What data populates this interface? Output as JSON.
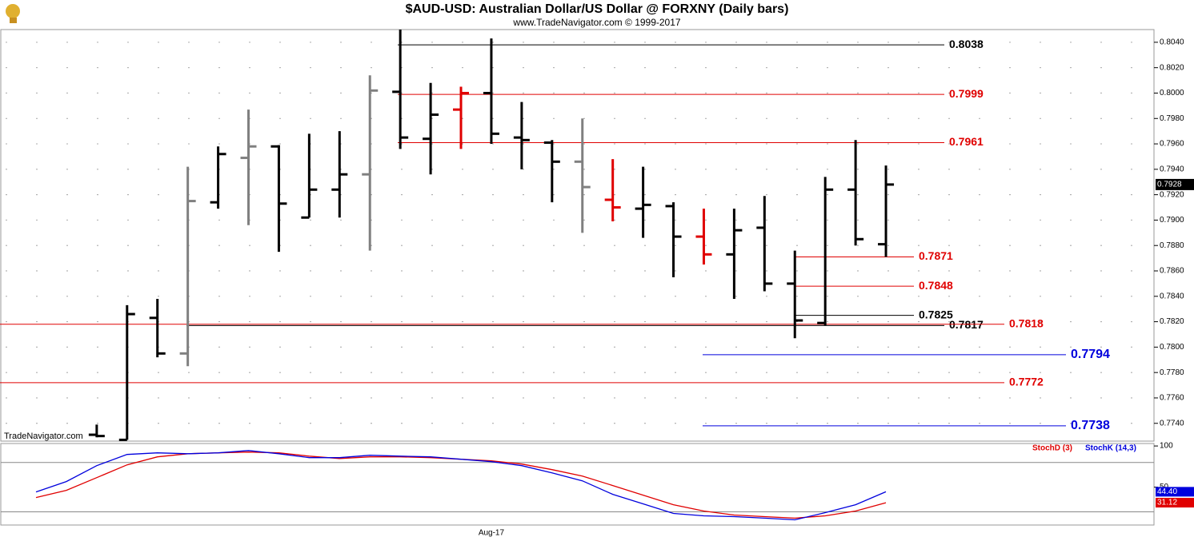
{
  "chart_data": [
    {
      "type": "ohlc",
      "title": "$AUD-USD:  Australian Dollar/US Dollar @ FORXNY  (Daily bars)",
      "subtitle": "www.TradeNavigator.com © 1999-2017",
      "watermark": "TradeNavigator.com",
      "categories": [
        null,
        null,
        null,
        null,
        null,
        null,
        null,
        null,
        null,
        null,
        null,
        null,
        null,
        null,
        null,
        "Aug-17",
        null,
        null,
        null,
        null,
        null,
        null,
        null,
        null,
        null,
        null,
        null,
        null,
        null
      ],
      "open": [
        null,
        null,
        0.7731,
        0.7727,
        0.7823,
        0.7795,
        0.7914,
        0.7949,
        0.7958,
        0.7902,
        0.7924,
        0.7936,
        0.8001,
        0.7964,
        0.7987,
        0.8,
        0.7965,
        0.7961,
        0.7946,
        0.7916,
        0.7909,
        0.7911,
        0.7887,
        0.7873,
        0.7894,
        0.785,
        0.7819,
        0.7924,
        0.7881
      ],
      "high": [
        null,
        null,
        0.7739,
        0.7833,
        0.7838,
        0.7942,
        0.7958,
        0.7987,
        0.7959,
        0.7968,
        0.797,
        0.8014,
        0.805,
        0.8008,
        0.8005,
        0.8043,
        0.7993,
        0.7963,
        0.798,
        0.7948,
        0.7942,
        0.7914,
        0.7909,
        0.7909,
        0.7919,
        0.7876,
        0.7934,
        0.7963,
        0.7943
      ],
      "low": [
        null,
        null,
        0.7729,
        0.7727,
        0.7792,
        0.7785,
        0.7909,
        0.7896,
        0.7875,
        0.7902,
        0.7902,
        0.7876,
        0.7956,
        0.7936,
        0.7956,
        0.796,
        0.794,
        0.7914,
        0.789,
        0.7899,
        0.7886,
        0.7855,
        0.7865,
        0.7838,
        0.7844,
        0.7807,
        0.7817,
        0.788,
        0.7871
      ],
      "close": [
        null,
        null,
        0.773,
        0.7826,
        0.7795,
        0.7915,
        0.7952,
        0.7958,
        0.7913,
        0.7924,
        0.7936,
        0.8002,
        0.7965,
        0.7983,
        0.8,
        0.7968,
        0.7963,
        0.7946,
        0.7926,
        0.791,
        0.7912,
        0.7887,
        0.7873,
        0.7892,
        0.785,
        0.7821,
        0.7924,
        0.7885,
        0.7928
      ],
      "colors": [
        null,
        null,
        "#000000",
        "#000000",
        "#000000",
        "#808080",
        "#000000",
        "#808080",
        "#000000",
        "#000000",
        "#000000",
        "#808080",
        "#000000",
        "#000000",
        "#e00000",
        "#000000",
        "#000000",
        "#000000",
        "#808080",
        "#e00000",
        "#000000",
        "#000000",
        "#e00000",
        "#000000",
        "#000000",
        "#000000",
        "#000000",
        "#000000",
        "#000000"
      ],
      "levels": [
        {
          "value": 0.8038,
          "color": "#000000"
        },
        {
          "value": 0.7999,
          "color": "#e00000"
        },
        {
          "value": 0.7961,
          "color": "#e00000"
        },
        {
          "value": 0.7871,
          "color": "#e00000"
        },
        {
          "value": 0.7848,
          "color": "#e00000"
        },
        {
          "value": 0.7825,
          "color": "#000000"
        },
        {
          "value": 0.7817,
          "color": "#000000"
        },
        {
          "value": 0.7818,
          "color": "#e00000"
        },
        {
          "value": 0.7794,
          "color": "#0000dd"
        },
        {
          "value": 0.7772,
          "color": "#e00000"
        },
        {
          "value": 0.7738,
          "color": "#0000dd"
        }
      ],
      "last": 0.7928,
      "ylim": [
        0.7726,
        0.805
      ],
      "yticks": [
        {
          "value": 0.774,
          "label": "0.7740"
        },
        {
          "value": 0.776,
          "label": "0.7760"
        },
        {
          "value": 0.778,
          "label": "0.7780"
        },
        {
          "value": 0.78,
          "label": "0.7800"
        },
        {
          "value": 0.782,
          "label": "0.7820"
        },
        {
          "value": 0.784,
          "label": "0.7840"
        },
        {
          "value": 0.786,
          "label": "0.7860"
        },
        {
          "value": 0.788,
          "label": "0.7880"
        },
        {
          "value": 0.79,
          "label": "0.7900"
        },
        {
          "value": 0.792,
          "label": "0.7920"
        },
        {
          "value": 0.794,
          "label": "0.7940"
        },
        {
          "value": 0.796,
          "label": "0.7960"
        },
        {
          "value": 0.798,
          "label": "0.7980"
        },
        {
          "value": 0.8,
          "label": "0.8000"
        },
        {
          "value": 0.802,
          "label": "0.8020"
        },
        {
          "value": 0.804,
          "label": "0.8040"
        }
      ],
      "grid": true
    },
    {
      "type": "line",
      "series": [
        {
          "name": "StochD (3)",
          "color": "#e00000",
          "values": [
            37.4,
            46.1,
            61.6,
            77.1,
            86.8,
            90.6,
            91.6,
            92.6,
            91.6,
            87.7,
            84.8,
            86.8,
            86.8,
            85.8,
            83.9,
            81.9,
            78.1,
            71.3,
            63.5,
            51.9,
            40.3,
            28.7,
            21.0,
            16.1,
            14.2,
            12.3,
            15.2,
            21.0,
            31.12
          ],
          "value_labels": [
            null,
            null,
            null,
            null,
            null,
            null,
            null,
            null,
            null,
            null,
            null,
            null,
            null,
            null,
            null,
            null,
            null,
            null,
            null,
            null,
            null,
            null,
            null,
            null,
            null,
            null,
            null,
            null,
            "31.12"
          ]
        },
        {
          "name": "StochK (14,3)",
          "color": "#0000dd",
          "values": [
            44.2,
            56.8,
            76.1,
            89.7,
            91.6,
            90.6,
            91.6,
            94.5,
            90.6,
            85.8,
            85.8,
            88.7,
            87.7,
            86.8,
            83.9,
            81.0,
            76.1,
            67.4,
            57.7,
            41.3,
            29.7,
            18.1,
            15.2,
            14.2,
            12.3,
            10.3,
            19.0,
            28.7,
            44.4
          ],
          "value_labels": [
            null,
            null,
            null,
            null,
            null,
            null,
            null,
            null,
            null,
            null,
            null,
            null,
            null,
            null,
            null,
            null,
            null,
            null,
            null,
            null,
            null,
            null,
            null,
            null,
            null,
            null,
            null,
            null,
            "44.40"
          ]
        }
      ],
      "reference_lines": [
        80,
        20
      ],
      "ylim": [
        4,
        103
      ],
      "yticks": [
        50,
        100
      ]
    }
  ]
}
